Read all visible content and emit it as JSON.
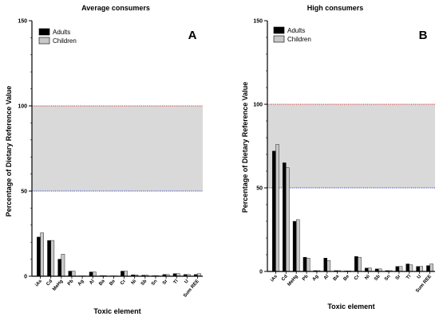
{
  "chart_data": [
    {
      "type": "bar",
      "title": "Average consumers",
      "panel_label": "A",
      "xlabel": "Toxic element",
      "ylabel": "Percentage of Dietary Reference Value",
      "ylim": [
        0,
        150
      ],
      "yticks": [
        "0",
        "50",
        "100",
        "150"
      ],
      "shaded_band": [
        50,
        100
      ],
      "reference_lines": [
        50,
        100
      ],
      "categories": [
        "iAs",
        "Cd",
        "MeHg",
        "Pb",
        "Ag",
        "Al",
        "Ba",
        "Be",
        "Cr",
        "Ni",
        "Sb",
        "Sn",
        "Sr",
        "Tl",
        "U",
        "Sum REE"
      ],
      "series": [
        {
          "name": "Adults",
          "color": "#000000",
          "values": [
            23,
            21,
            10,
            3,
            0.2,
            2.5,
            0.3,
            0.2,
            3,
            0.8,
            0.6,
            0.3,
            1,
            1.5,
            1,
            1
          ]
        },
        {
          "name": "Children",
          "color": "#c8c8c8",
          "values": [
            25.5,
            21,
            13,
            3,
            0.2,
            2.5,
            0.3,
            0.2,
            3,
            0.8,
            0.6,
            0.3,
            1,
            1.5,
            1,
            1.5
          ]
        }
      ],
      "legend": "top-left",
      "grid": false
    },
    {
      "type": "bar",
      "title": "High consumers",
      "panel_label": "B",
      "xlabel": "Toxic element",
      "ylabel": "Percentage of Dietary Reference Value",
      "ylim": [
        0,
        150
      ],
      "yticks": [
        "0",
        "50",
        "100",
        "150"
      ],
      "shaded_band": [
        50,
        100
      ],
      "reference_lines": [
        50,
        100
      ],
      "categories": [
        "iAs",
        "Cd",
        "MeHg",
        "Pb",
        "Ag",
        "Al",
        "Ba",
        "Be",
        "Cr",
        "Ni",
        "Sb",
        "Sn",
        "Sr",
        "Tl",
        "U",
        "Sum REE"
      ],
      "series": [
        {
          "name": "Adults",
          "color": "#000000",
          "values": [
            72,
            65,
            30,
            8.5,
            0.5,
            8,
            0.5,
            0.3,
            9,
            2,
            1.5,
            0.5,
            3,
            4.5,
            3,
            3.5
          ]
        },
        {
          "name": "Children",
          "color": "#c8c8c8",
          "values": [
            76,
            62,
            31,
            8,
            0.5,
            6.5,
            0.5,
            0.3,
            8.5,
            2,
            1.5,
            0.5,
            3,
            4,
            3,
            4.5
          ]
        }
      ],
      "legend": "top-left",
      "grid": false
    }
  ],
  "colors": {
    "adults": "#000000",
    "children": "#c8c8c8",
    "band": "#d9d9d9",
    "line_100": "#d93333",
    "line_50": "#3340c0"
  }
}
